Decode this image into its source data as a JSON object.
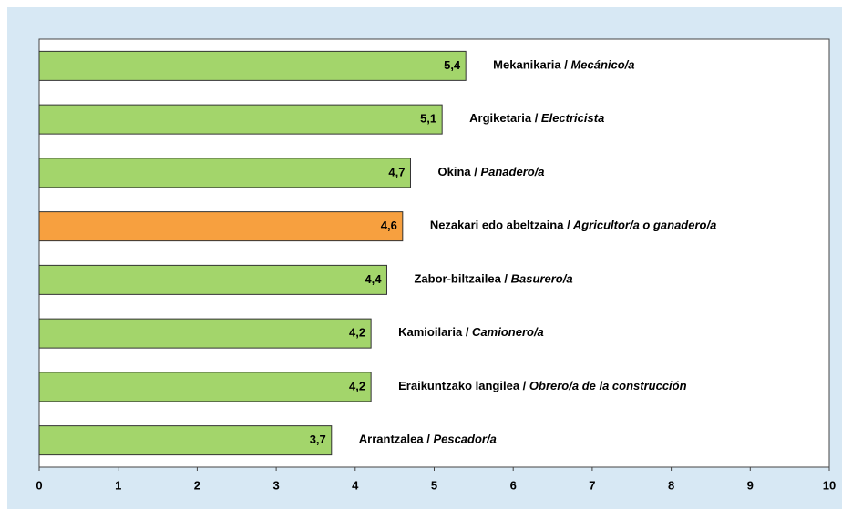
{
  "chart_data": {
    "type": "bar",
    "orientation": "horizontal",
    "categories": [
      "Mekanikaria / Mecánico/a",
      "Argiketaria / Electricista",
      "Okina / Panadero/a",
      "Nezakari edo abeltzaina / Agricultor/a o ganadero/a",
      "Zabor-biltzailea / Basurero/a",
      "Kamioilaria / Camionero/a",
      "Eraikuntzako langilea / Obrero/a de la construcción",
      "Arrantzalea / Pescador/a"
    ],
    "values": [
      5.4,
      5.1,
      4.7,
      4.6,
      4.4,
      4.2,
      4.2,
      3.7
    ],
    "value_labels": [
      "5,4",
      "5,1",
      "4,7",
      "4,6",
      "4,4",
      "4,2",
      "4,2",
      "3,7"
    ],
    "colors": [
      "#a3d56b",
      "#a3d56b",
      "#a3d56b",
      "#f7a03f",
      "#a3d56b",
      "#a3d56b",
      "#a3d56b",
      "#a3d56b"
    ],
    "xlim": [
      0,
      10
    ],
    "xticks": [
      0,
      1,
      2,
      3,
      4,
      5,
      6,
      7,
      8,
      9,
      10
    ]
  }
}
